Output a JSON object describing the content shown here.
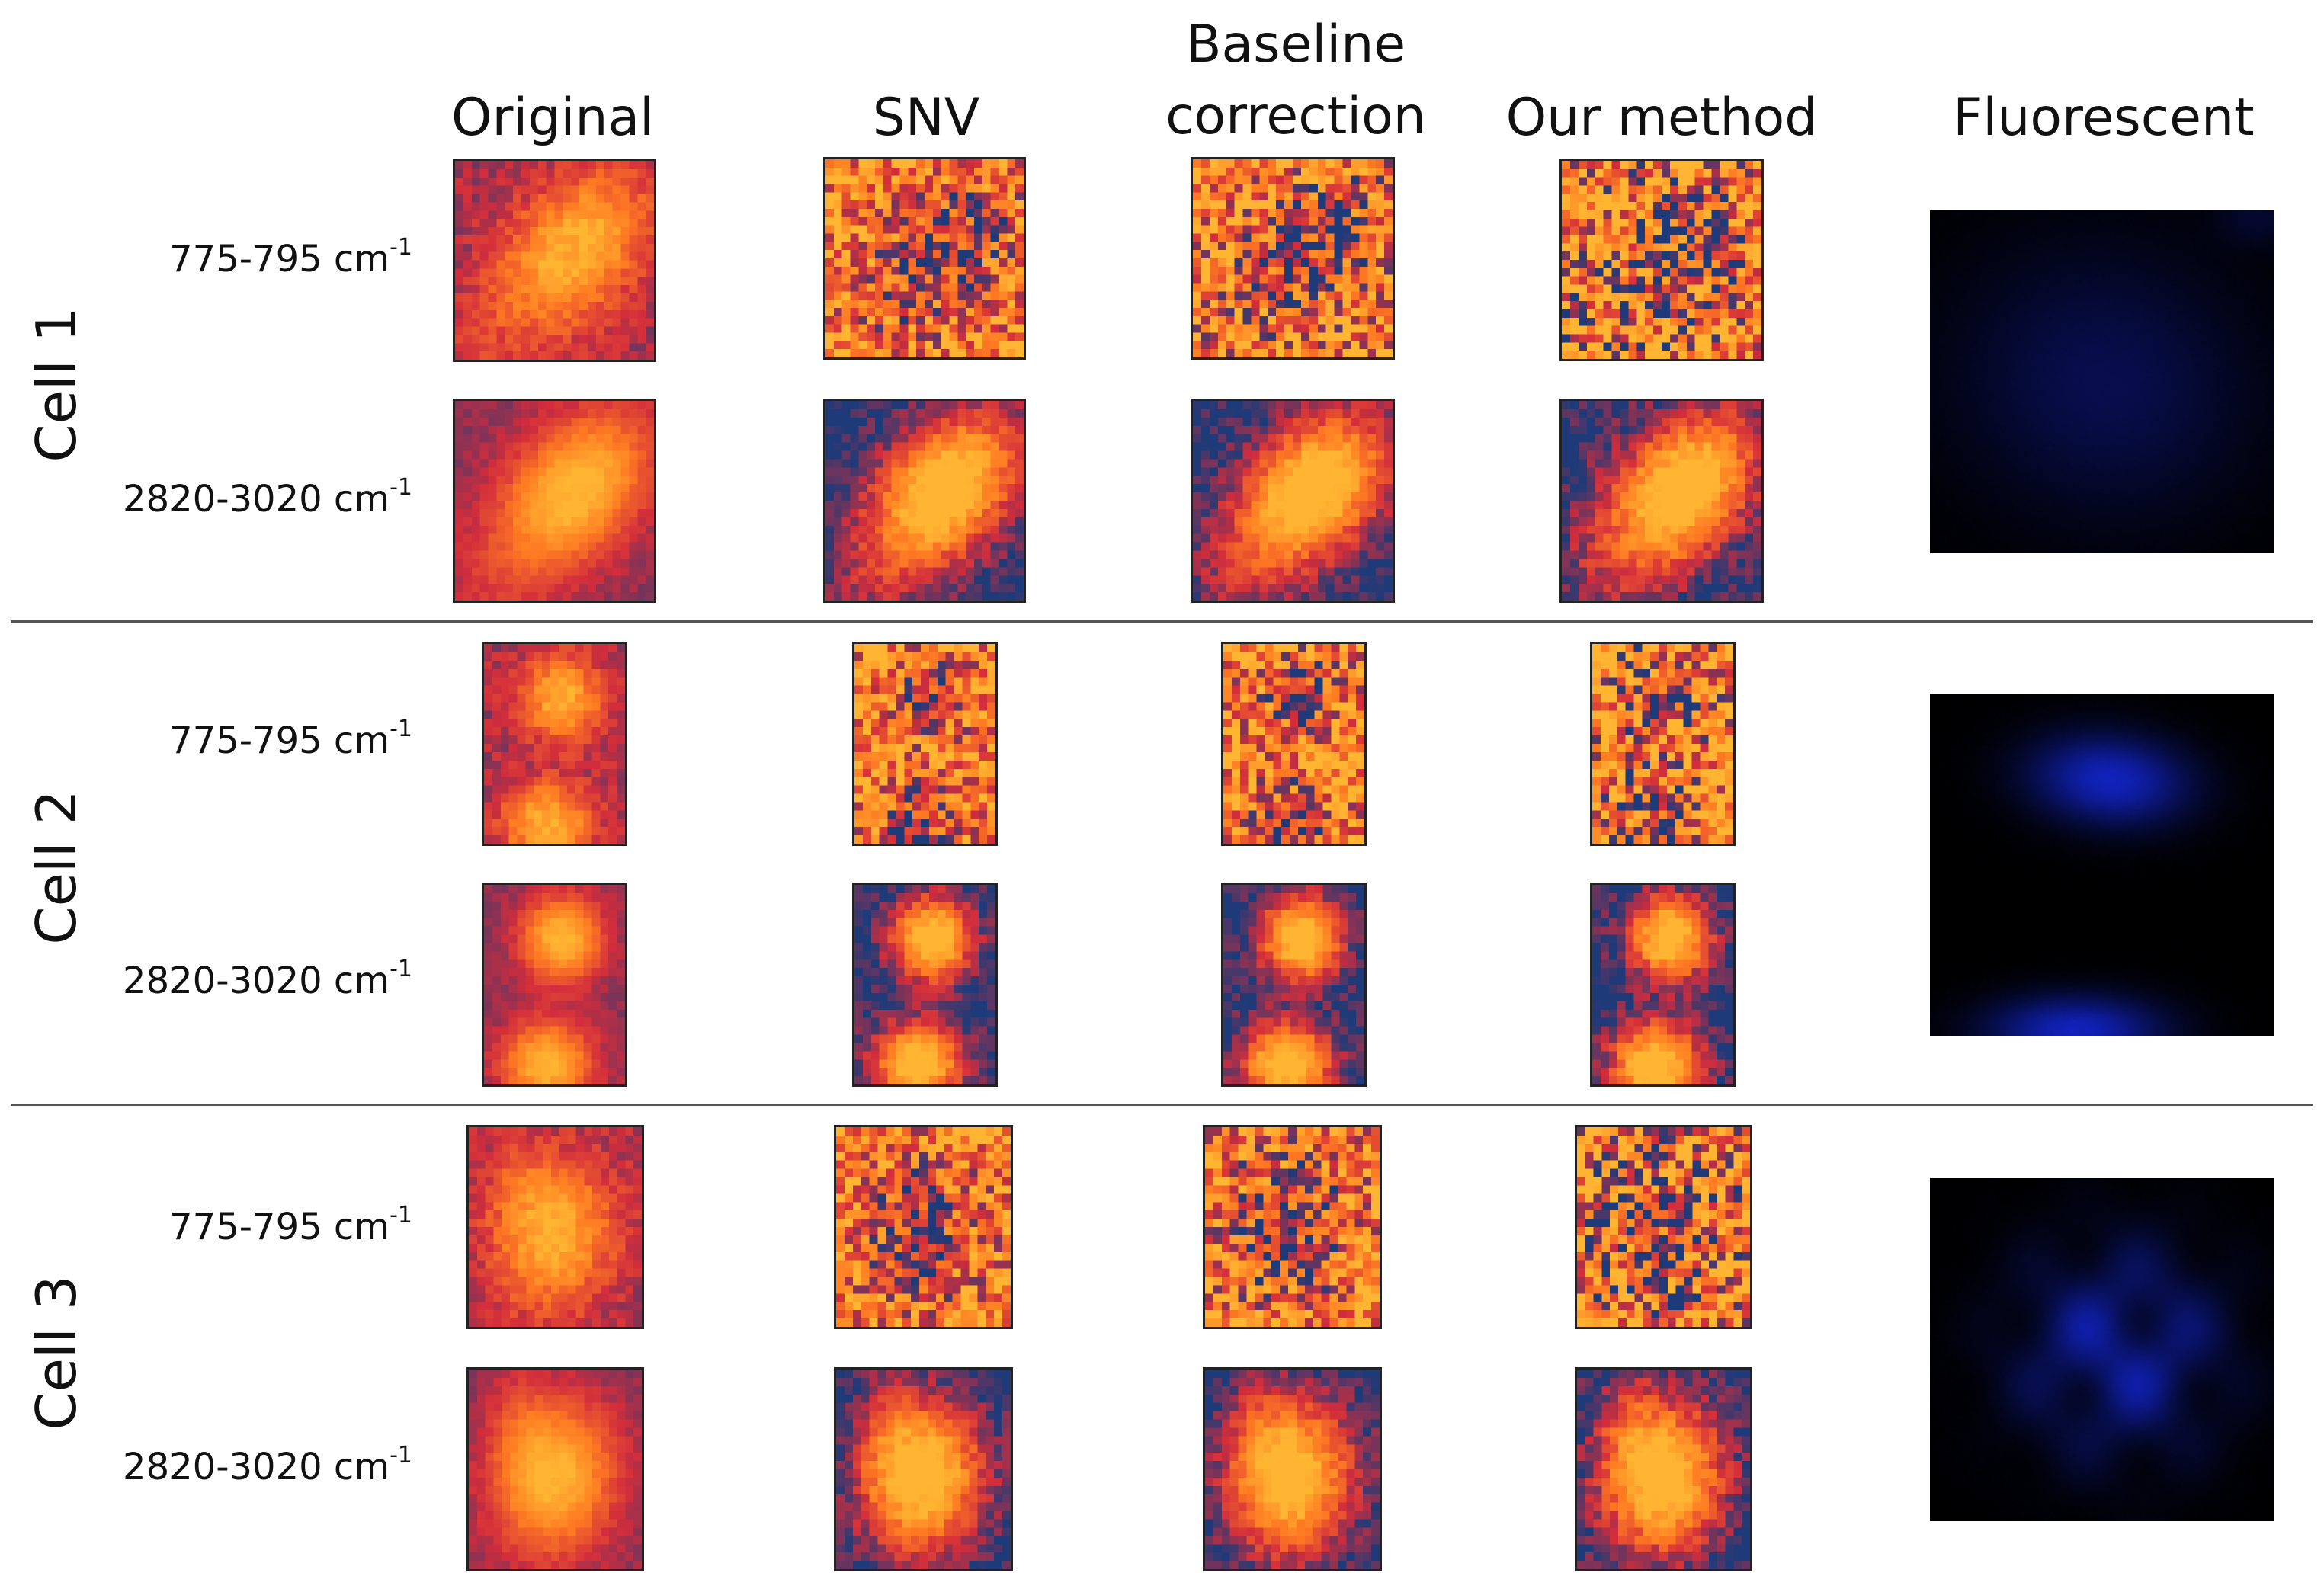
{
  "columns": [
    "Original",
    "SNV",
    "Baseline\ncorrection",
    "Our method",
    "Fluorescent"
  ],
  "cells": [
    {
      "label": "Cell 1",
      "rows": [
        "775-795 cm",
        "2820-3020 cm"
      ]
    },
    {
      "label": "Cell 2",
      "rows": [
        "775-795 cm",
        "2820-3020 cm"
      ]
    },
    {
      "label": "Cell 3",
      "rows": [
        "775-795 cm",
        "2820-3020 cm"
      ]
    }
  ],
  "superscript": "-1",
  "colormap": [
    "#1e3a78",
    "#d22d3c",
    "#ff7a22",
    "#ffb432"
  ],
  "fluorescent_color": "#1428dc"
}
